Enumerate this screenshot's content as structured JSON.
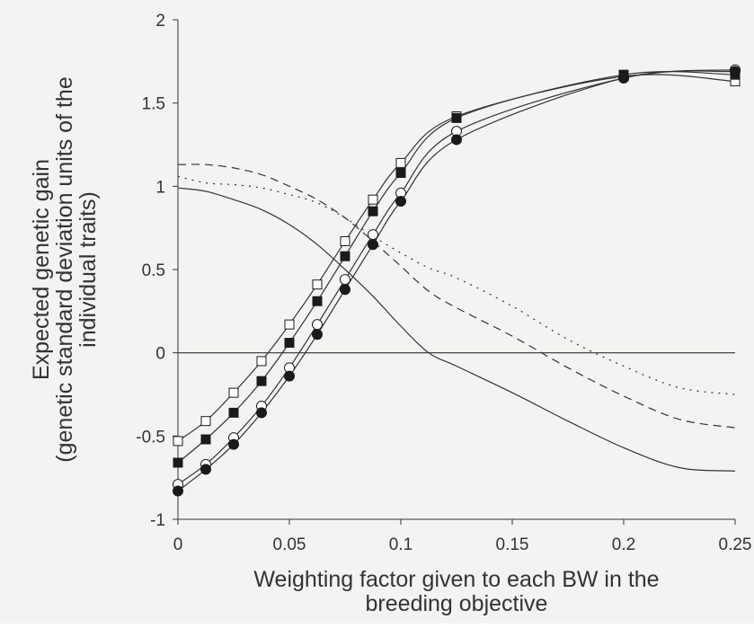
{
  "chart_data": {
    "type": "line",
    "title": "",
    "xlabel_lines": [
      "Weighting factor given to each BW in the",
      "breeding objective"
    ],
    "ylabel_lines": [
      "Expected genetic gain",
      "(genetic standard deviation units of the",
      "individual traits)"
    ],
    "xlim": [
      0,
      0.25
    ],
    "ylim": [
      -1,
      2
    ],
    "xticks": [
      0,
      0.05,
      0.1,
      0.15,
      0.2,
      0.25
    ],
    "xtick_labels": [
      "0",
      "0.05",
      "0.1",
      "0.15",
      "0.2",
      "0.25"
    ],
    "yticks": [
      -1,
      -0.5,
      0,
      0.5,
      1,
      1.5,
      2
    ],
    "ytick_labels": [
      "-1",
      "-0.5",
      "0",
      "0.5",
      "1",
      "1.5",
      "2"
    ],
    "grid": false,
    "legend": "none",
    "reference_line_y": 0,
    "series": [
      {
        "marker": "open-square",
        "line_style": "solid",
        "x": [
          0,
          0.0125,
          0.025,
          0.0375,
          0.05,
          0.0625,
          0.075,
          0.0875,
          0.1,
          0.125,
          0.2,
          0.25
        ],
        "y": [
          -0.53,
          -0.41,
          -0.24,
          -0.05,
          0.17,
          0.41,
          0.67,
          0.92,
          1.14,
          1.42,
          1.66,
          1.63
        ]
      },
      {
        "marker": "filled-square",
        "line_style": "solid",
        "x": [
          0,
          0.0125,
          0.025,
          0.0375,
          0.05,
          0.0625,
          0.075,
          0.0875,
          0.1,
          0.125,
          0.2,
          0.25
        ],
        "y": [
          -0.66,
          -0.52,
          -0.36,
          -0.17,
          0.06,
          0.31,
          0.58,
          0.85,
          1.08,
          1.41,
          1.67,
          1.67
        ]
      },
      {
        "marker": "open-circle",
        "line_style": "solid",
        "x": [
          0,
          0.0125,
          0.025,
          0.0375,
          0.05,
          0.0625,
          0.075,
          0.0875,
          0.1,
          0.125,
          0.2,
          0.25
        ],
        "y": [
          -0.79,
          -0.67,
          -0.51,
          -0.32,
          -0.09,
          0.17,
          0.44,
          0.71,
          0.96,
          1.33,
          1.65,
          1.7
        ]
      },
      {
        "marker": "filled-circle",
        "line_style": "solid",
        "x": [
          0,
          0.0125,
          0.025,
          0.0375,
          0.05,
          0.0625,
          0.075,
          0.0875,
          0.1,
          0.125,
          0.2,
          0.25
        ],
        "y": [
          -0.83,
          -0.7,
          -0.55,
          -0.36,
          -0.14,
          0.11,
          0.38,
          0.65,
          0.91,
          1.28,
          1.65,
          1.69
        ]
      },
      {
        "marker": "none",
        "line_style": "solid",
        "x": [
          0,
          0.0125,
          0.025,
          0.0375,
          0.05,
          0.0625,
          0.075,
          0.0875,
          0.1,
          0.1125,
          0.125,
          0.15,
          0.175,
          0.2,
          0.225,
          0.25
        ],
        "y": [
          0.99,
          0.97,
          0.92,
          0.86,
          0.77,
          0.65,
          0.5,
          0.34,
          0.16,
          0.0,
          -0.08,
          -0.24,
          -0.41,
          -0.57,
          -0.69,
          -0.71
        ]
      },
      {
        "marker": "none",
        "line_style": "dashed",
        "x": [
          0,
          0.0125,
          0.025,
          0.0375,
          0.05,
          0.0625,
          0.075,
          0.0875,
          0.1,
          0.1125,
          0.125,
          0.15,
          0.175,
          0.2,
          0.225,
          0.25
        ],
        "y": [
          1.13,
          1.13,
          1.11,
          1.07,
          1.0,
          0.92,
          0.81,
          0.67,
          0.52,
          0.37,
          0.27,
          0.1,
          -0.09,
          -0.26,
          -0.4,
          -0.45
        ]
      },
      {
        "marker": "none",
        "line_style": "dotted",
        "x": [
          0,
          0.0125,
          0.025,
          0.0375,
          0.05,
          0.0625,
          0.075,
          0.0875,
          0.1,
          0.1125,
          0.125,
          0.15,
          0.175,
          0.2,
          0.225,
          0.25
        ],
        "y": [
          1.06,
          1.02,
          1.01,
          0.99,
          0.95,
          0.9,
          0.81,
          0.7,
          0.6,
          0.51,
          0.45,
          0.28,
          0.08,
          -0.08,
          -0.21,
          -0.25
        ]
      }
    ]
  }
}
